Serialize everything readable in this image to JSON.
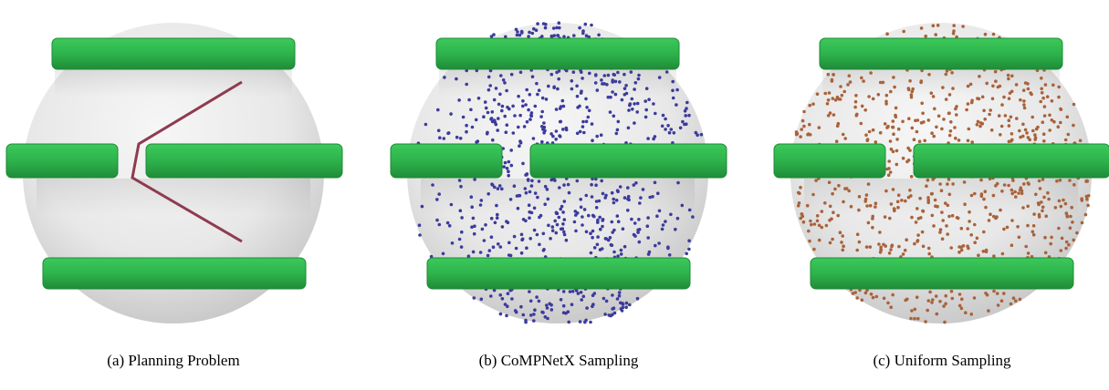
{
  "captions": [
    "(a) Planning Problem",
    "(b) CoMPNetX Sampling",
    "(c) Uniform Sampling"
  ]
}
